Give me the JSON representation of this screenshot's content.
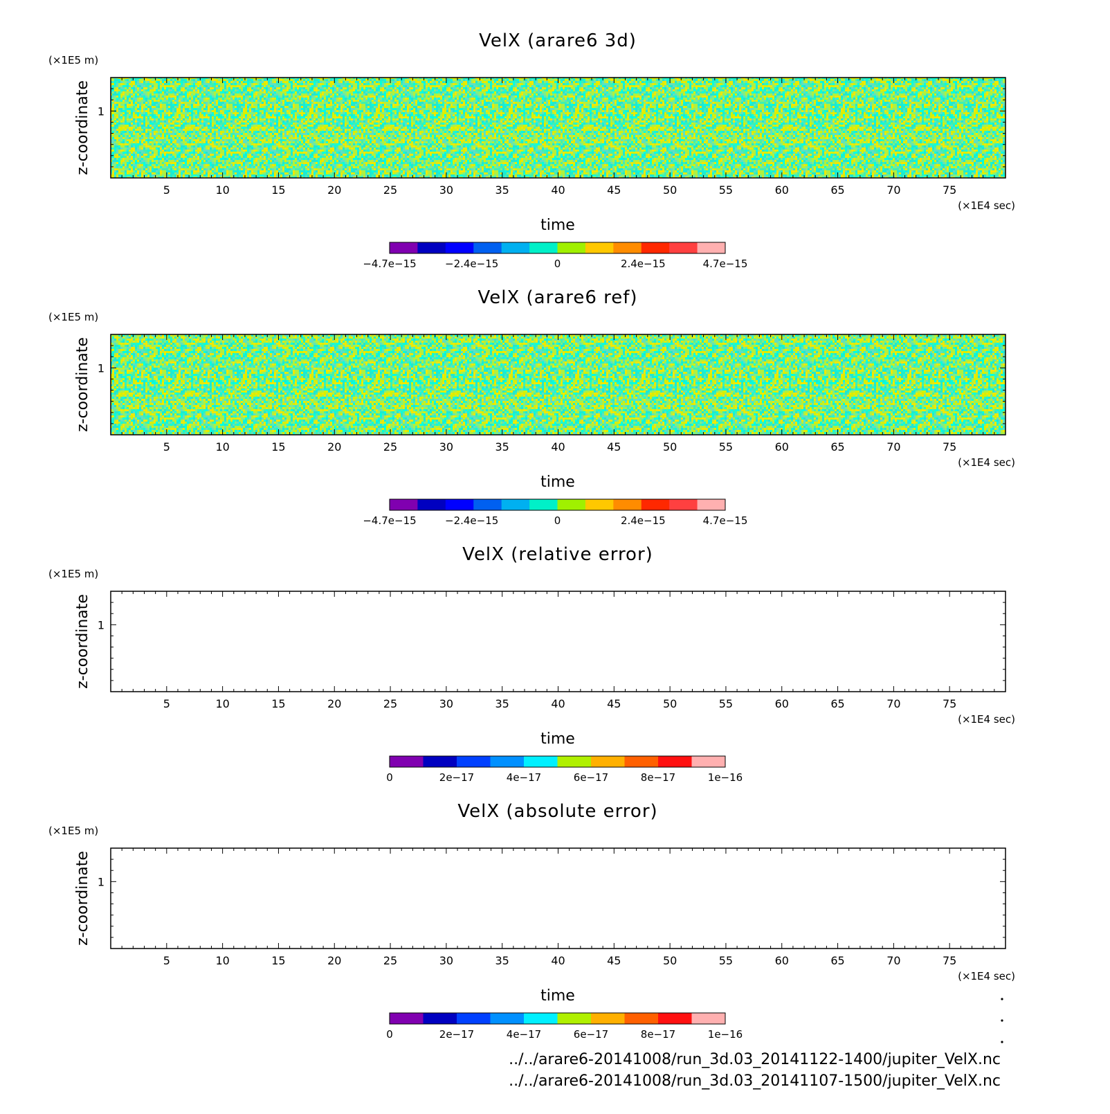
{
  "colors": {
    "diverging": [
      "#8000b0",
      "#0000c0",
      "#0000ff",
      "#0060f0",
      "#00b0f0",
      "#00f0c8",
      "#a0f000",
      "#ffc800",
      "#ff8c00",
      "#ff2800",
      "#ff4040",
      "#ffb0b0"
    ],
    "sequential": [
      "#8000b0",
      "#0000c0",
      "#0040ff",
      "#0090ff",
      "#00f0ff",
      "#b0f000",
      "#ffb000",
      "#ff6000",
      "#ff1010",
      "#ffb0b0"
    ],
    "noise": [
      "#00ffe0",
      "#40f0b0",
      "#80f080",
      "#b0f040",
      "#d8f000",
      "#f0e800",
      "#60e0c0",
      "#20e8d0"
    ]
  },
  "chart_data": [
    {
      "type": "heatmap",
      "title": "VelX (arare6 3d)",
      "xlabel": "time",
      "ylabel": "z-coordinate",
      "x_unit": "(×1E4 sec)",
      "y_unit": "(×1E5 m)",
      "xlim": [
        0,
        80
      ],
      "ylim": [
        0.4,
        1.3
      ],
      "x_ticks": [
        5,
        10,
        15,
        20,
        25,
        30,
        35,
        40,
        45,
        50,
        55,
        60,
        65,
        70,
        75
      ],
      "y_ticks": [
        1
      ],
      "field": "noise",
      "colorbar": {
        "palette": "diverging",
        "range": [
          -4.7e-15,
          4.7e-15
        ],
        "tick_labels": [
          "−4.7e−15",
          "−2.4e−15",
          "0",
          "2.4e−15",
          "4.7e−15"
        ],
        "tick_values": [
          -4.7e-15,
          -2.4e-15,
          0,
          2.4e-15,
          4.7e-15
        ]
      }
    },
    {
      "type": "heatmap",
      "title": "VelX (arare6 ref)",
      "xlabel": "time",
      "ylabel": "z-coordinate",
      "x_unit": "(×1E4 sec)",
      "y_unit": "(×1E5 m)",
      "xlim": [
        0,
        80
      ],
      "ylim": [
        0.4,
        1.3
      ],
      "x_ticks": [
        5,
        10,
        15,
        20,
        25,
        30,
        35,
        40,
        45,
        50,
        55,
        60,
        65,
        70,
        75
      ],
      "y_ticks": [
        1
      ],
      "field": "noise",
      "colorbar": {
        "palette": "diverging",
        "range": [
          -4.7e-15,
          4.7e-15
        ],
        "tick_labels": [
          "−4.7e−15",
          "−2.4e−15",
          "0",
          "2.4e−15",
          "4.7e−15"
        ],
        "tick_values": [
          -4.7e-15,
          -2.4e-15,
          0,
          2.4e-15,
          4.7e-15
        ]
      }
    },
    {
      "type": "heatmap",
      "title": "VelX (relative error)",
      "xlabel": "time",
      "ylabel": "z-coordinate",
      "x_unit": "(×1E4 sec)",
      "y_unit": "(×1E5 m)",
      "xlim": [
        0,
        80
      ],
      "ylim": [
        0.4,
        1.3
      ],
      "x_ticks": [
        5,
        10,
        15,
        20,
        25,
        30,
        35,
        40,
        45,
        50,
        55,
        60,
        65,
        70,
        75
      ],
      "y_ticks": [
        1
      ],
      "field": "empty",
      "colorbar": {
        "palette": "sequential",
        "range": [
          0,
          1e-16
        ],
        "tick_labels": [
          "0",
          "2e−17",
          "4e−17",
          "6e−17",
          "8e−17",
          "1e−16"
        ],
        "tick_values": [
          0,
          2e-17,
          4e-17,
          6e-17,
          8e-17,
          1e-16
        ]
      }
    },
    {
      "type": "heatmap",
      "title": "VelX (absolute error)",
      "xlabel": "time",
      "ylabel": "z-coordinate",
      "x_unit": "(×1E4 sec)",
      "y_unit": "(×1E5 m)",
      "xlim": [
        0,
        80
      ],
      "ylim": [
        0.4,
        1.3
      ],
      "x_ticks": [
        5,
        10,
        15,
        20,
        25,
        30,
        35,
        40,
        45,
        50,
        55,
        60,
        65,
        70,
        75
      ],
      "y_ticks": [
        1
      ],
      "field": "empty",
      "colorbar": {
        "palette": "sequential",
        "range": [
          0,
          1e-16
        ],
        "tick_labels": [
          "0",
          "2e−17",
          "4e−17",
          "6e−17",
          "8e−17",
          "1e−16"
        ],
        "tick_values": [
          0,
          2e-17,
          4e-17,
          6e-17,
          8e-17,
          1e-16
        ]
      }
    }
  ],
  "footer": {
    "file_3d": "../../arare6-20141008/run_3d.03_20141122-1400/jupiter_VelX.nc",
    "file_ref": "../../arare6-20141008/run_3d.03_20141107-1500/jupiter_VelX.nc"
  }
}
